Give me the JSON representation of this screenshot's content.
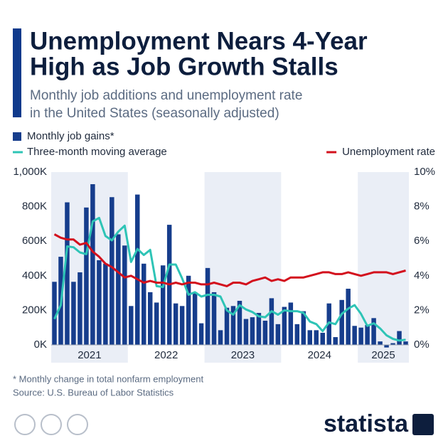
{
  "chart_data": {
    "type": "bar-line",
    "title": [
      "Unemployment Nears 4-Year",
      "High as Job Growth Stalls"
    ],
    "subtitle": [
      "Monthly job additions and unemployment rate",
      "in the United States (seasonally adjusted)"
    ],
    "footnote": "* Monthly change in total nonfarm employment",
    "source": "Source: U.S. Bureau of Labor Statistics",
    "brand": "statista",
    "categories": [
      "2021",
      null,
      null,
      null,
      null,
      null,
      null,
      null,
      null,
      null,
      null,
      null,
      "2022",
      null,
      null,
      null,
      null,
      null,
      null,
      null,
      null,
      null,
      null,
      null,
      "2023",
      null,
      null,
      null,
      null,
      null,
      null,
      null,
      null,
      null,
      null,
      null,
      "2024",
      null,
      null,
      null,
      null,
      null,
      null,
      null,
      null,
      null,
      null,
      null,
      "2025",
      null,
      null,
      null,
      null,
      null,
      null,
      null
    ],
    "series": [
      {
        "name": "Monthly job gains*",
        "type": "bar",
        "color": "#163d8c",
        "values": [
          365,
          510,
          825,
          365,
          420,
          795,
          930,
          490,
          470,
          855,
          640,
          575,
          225,
          870,
          470,
          305,
          245,
          460,
          695,
          240,
          225,
          400,
          305,
          125,
          445,
          305,
          85,
          215,
          225,
          255,
          150,
          160,
          185,
          140,
          270,
          120,
          220,
          245,
          120,
          195,
          85,
          85,
          70,
          240,
          45,
          260,
          325,
          110,
          100,
          115,
          155,
          20,
          -15,
          10,
          80,
          20
        ]
      },
      {
        "name": "Three-month moving average",
        "type": "line",
        "color": "#2ec4b6",
        "values": [
          150,
          230,
          570,
          565,
          535,
          525,
          715,
          735,
          630,
          605,
          655,
          690,
          480,
          555,
          520,
          550,
          340,
          335,
          465,
          465,
          385,
          290,
          305,
          280,
          290,
          290,
          280,
          200,
          175,
          230,
          205,
          190,
          165,
          160,
          195,
          175,
          200,
          195,
          195,
          185,
          135,
          120,
          80,
          130,
          120,
          180,
          210,
          230,
          180,
          110,
          125,
          95,
          55,
          35,
          25,
          30
        ]
      },
      {
        "name": "Unemployment rate",
        "type": "line",
        "axis": "y2",
        "color": "#d3101d",
        "values": [
          6.4,
          6.2,
          6.1,
          6.1,
          5.8,
          5.9,
          5.4,
          5.1,
          4.7,
          4.5,
          4.2,
          3.9,
          4.0,
          3.8,
          3.6,
          3.7,
          3.6,
          3.6,
          3.5,
          3.6,
          3.5,
          3.6,
          3.6,
          3.5,
          3.5,
          3.6,
          3.5,
          3.4,
          3.6,
          3.6,
          3.5,
          3.7,
          3.8,
          3.9,
          3.7,
          3.8,
          3.7,
          3.9,
          3.9,
          3.9,
          4.0,
          4.1,
          4.2,
          4.2,
          4.1,
          4.1,
          4.2,
          4.1,
          4.0,
          4.1,
          4.2,
          4.2,
          4.2,
          4.1,
          4.2,
          4.3
        ]
      }
    ],
    "ylim": [
      0,
      1000
    ],
    "yticks": [
      {
        "value": 0,
        "label": "0K"
      },
      {
        "value": 200,
        "label": "200K"
      },
      {
        "value": 400,
        "label": "400K"
      },
      {
        "value": 600,
        "label": "600K"
      },
      {
        "value": 800,
        "label": "800K"
      },
      {
        "value": 1000,
        "label": "1,000K"
      }
    ],
    "y2lim": [
      0,
      10
    ],
    "y2ticks": [
      {
        "value": 0,
        "label": "0%"
      },
      {
        "value": 2,
        "label": "2%"
      },
      {
        "value": 4,
        "label": "4%"
      },
      {
        "value": 6,
        "label": "6%"
      },
      {
        "value": 8,
        "label": "8%"
      },
      {
        "value": 10,
        "label": "10%"
      }
    ],
    "band_color": "#eaeef6"
  }
}
